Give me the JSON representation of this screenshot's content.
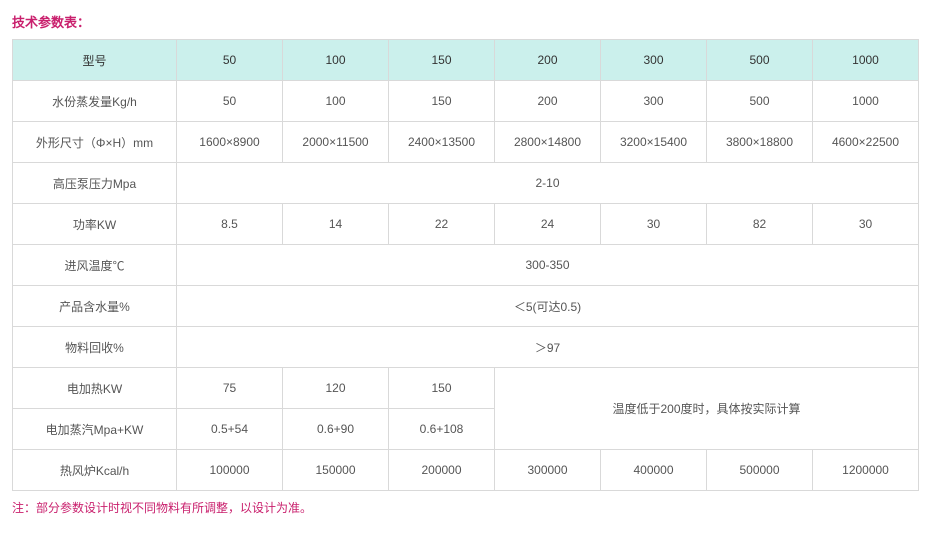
{
  "title": "技术参数表：",
  "footnote": "注：部分参数设计时视不同物料有所调整，以设计为准。",
  "colors": {
    "accent": "#c9206d",
    "header_bg": "#cbf0ec",
    "border": "#d9d9d9",
    "text": "#555555"
  },
  "table": {
    "header": {
      "label": "型号",
      "cols": [
        "50",
        "100",
        "150",
        "200",
        "300",
        "500",
        "1000"
      ]
    },
    "rows": {
      "evap": {
        "label": "水份蒸发量Kg/h",
        "vals": [
          "50",
          "100",
          "150",
          "200",
          "300",
          "500",
          "1000"
        ]
      },
      "dim": {
        "label": "外形尺寸（Φ×H）mm",
        "vals": [
          "1600×8900",
          "2000×11500",
          "2400×13500",
          "2800×14800",
          "3200×15400",
          "3800×18800",
          "4600×22500"
        ]
      },
      "press": {
        "label": "高压泵压力Mpa",
        "merged": "2-10"
      },
      "power": {
        "label": "功率KW",
        "vals": [
          "8.5",
          "14",
          "22",
          "24",
          "30",
          "82",
          "30"
        ]
      },
      "inlet": {
        "label": "进风温度℃",
        "merged": "300-350"
      },
      "moist": {
        "label": "产品含水量%",
        "merged": "＜5(可达0.5)"
      },
      "recov": {
        "label": "物料回收%",
        "merged": "＞97"
      },
      "eheat": {
        "label": "电加热KW",
        "vals3": [
          "75",
          "120",
          "150"
        ]
      },
      "esteam": {
        "label": "电加蒸汽Mpa+KW",
        "vals3": [
          "0.5+54",
          "0.6+90",
          "0.6+108"
        ]
      },
      "note4": "温度低于200度时，具体按实际计算",
      "furnace": {
        "label": "热风炉Kcal/h",
        "vals": [
          "100000",
          "150000",
          "200000",
          "300000",
          "400000",
          "500000",
          "1200000"
        ]
      }
    }
  }
}
